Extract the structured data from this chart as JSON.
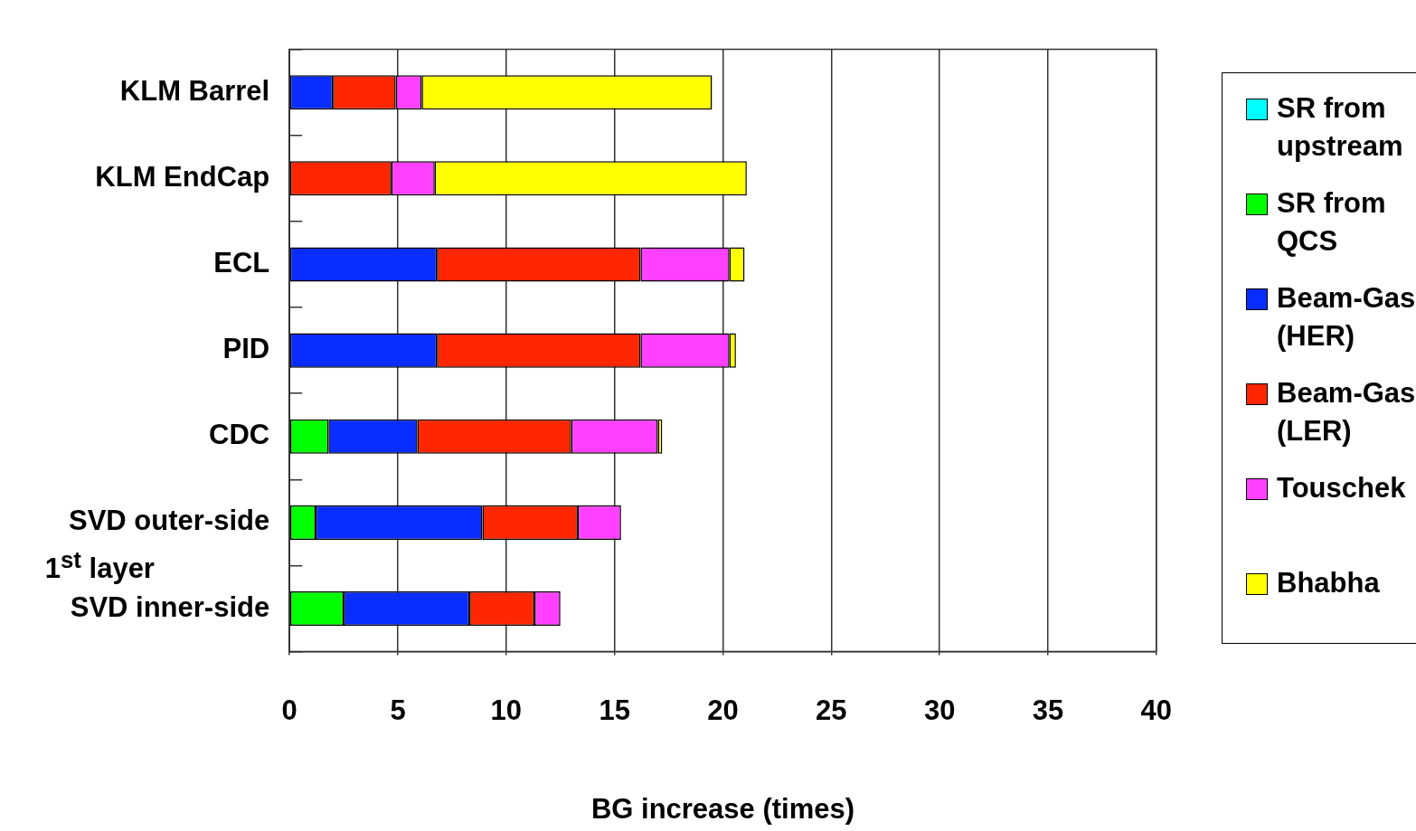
{
  "chart_data": {
    "type": "bar",
    "orientation": "horizontal",
    "stacked": true,
    "categories": [
      "KLM Barrel",
      "KLM EndCap",
      "ECL",
      "PID",
      "CDC",
      "SVD outer-side",
      "SVD inner-side"
    ],
    "series": [
      {
        "name": "SR from upstream",
        "color": "#00ffff",
        "values": [
          null,
          null,
          null,
          null,
          null,
          null,
          null
        ]
      },
      {
        "name": "SR from QCS",
        "color": "#00ff00",
        "values": [
          0,
          0,
          0,
          0,
          1.8,
          1.2,
          2.5
        ]
      },
      {
        "name": "Beam-Gas (HER)",
        "color": "#0a2dff",
        "values": [
          2.0,
          0,
          6.8,
          6.8,
          4.1,
          7.7,
          5.8
        ]
      },
      {
        "name": "Beam-Gas (LER)",
        "color": "#ff2600",
        "values": [
          2.9,
          4.7,
          9.4,
          9.4,
          7.1,
          4.4,
          3.0
        ]
      },
      {
        "name": "Touschek",
        "color": "#ff40ff",
        "values": [
          1.2,
          2.0,
          4.1,
          4.1,
          4.0,
          2.0,
          1.2
        ]
      },
      {
        "name": "Bhabha",
        "color": "#ffff00",
        "values": [
          13.4,
          14.4,
          0.7,
          0.3,
          0.2,
          0,
          0
        ]
      }
    ],
    "xlabel": "BG increase (times)",
    "xlim": [
      0,
      40
    ],
    "xticks": [
      0,
      5,
      10,
      15,
      20,
      25,
      30,
      35,
      40
    ],
    "grid": "x",
    "legend": "right",
    "annotations": [
      {
        "text": "1$^{st}$ layer"
      }
    ]
  }
}
